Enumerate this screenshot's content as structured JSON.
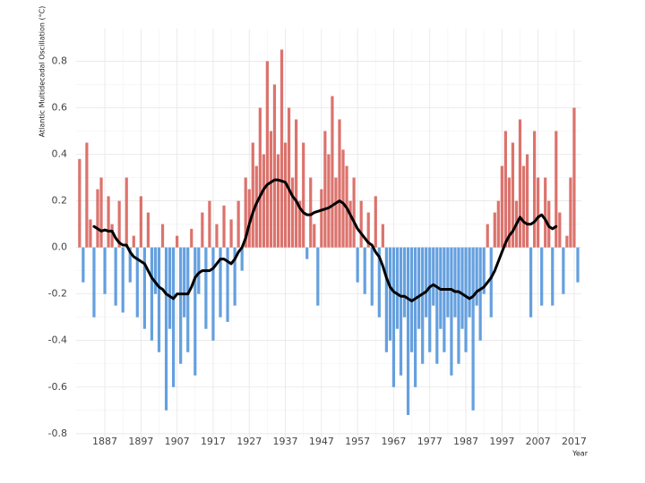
{
  "chart_data": {
    "type": "bar-line",
    "y_label": "Atlantic Multidecadal Oscillation (°C)",
    "x_label": "Year",
    "xlim": [
      1879,
      2019
    ],
    "ylim": [
      -0.82,
      0.94
    ],
    "xticks": [
      1887,
      1897,
      1907,
      1917,
      1927,
      1937,
      1947,
      1957,
      1967,
      1977,
      1987,
      1997,
      2007,
      2017
    ],
    "yticks": [
      0.8,
      0.6,
      0.4,
      0.2,
      {
        "value": 0,
        "label": "0.0"
      },
      -0.2,
      -0.4,
      -0.6,
      -0.8
    ],
    "grid": true,
    "positive_color": "#d65a54",
    "negative_color": "#4a8fd9",
    "x": [
      1880,
      1881,
      1882,
      1883,
      1884,
      1885,
      1886,
      1887,
      1888,
      1889,
      1890,
      1891,
      1892,
      1893,
      1894,
      1895,
      1896,
      1897,
      1898,
      1899,
      1900,
      1901,
      1902,
      1903,
      1904,
      1905,
      1906,
      1907,
      1908,
      1909,
      1910,
      1911,
      1912,
      1913,
      1914,
      1915,
      1916,
      1917,
      1918,
      1919,
      1920,
      1921,
      1922,
      1923,
      1924,
      1925,
      1926,
      1927,
      1928,
      1929,
      1930,
      1931,
      1932,
      1933,
      1934,
      1935,
      1936,
      1937,
      1938,
      1939,
      1940,
      1941,
      1942,
      1943,
      1944,
      1945,
      1946,
      1947,
      1948,
      1949,
      1950,
      1951,
      1952,
      1953,
      1954,
      1955,
      1956,
      1957,
      1958,
      1959,
      1960,
      1961,
      1962,
      1963,
      1964,
      1965,
      1966,
      1967,
      1968,
      1969,
      1970,
      1971,
      1972,
      1973,
      1974,
      1975,
      1976,
      1977,
      1978,
      1979,
      1980,
      1981,
      1982,
      1983,
      1984,
      1985,
      1986,
      1987,
      1988,
      1989,
      1990,
      1991,
      1992,
      1993,
      1994,
      1995,
      1996,
      1997,
      1998,
      1999,
      2000,
      2001,
      2002,
      2003,
      2004,
      2005,
      2006,
      2007,
      2008,
      2009,
      2010,
      2011,
      2012,
      2013,
      2014,
      2015,
      2016,
      2017,
      2018
    ],
    "values": [
      0.38,
      -0.15,
      0.45,
      0.12,
      -0.3,
      0.25,
      0.3,
      -0.2,
      0.22,
      0.1,
      -0.25,
      0.2,
      -0.28,
      0.3,
      -0.15,
      0.05,
      -0.3,
      0.22,
      -0.35,
      0.15,
      -0.4,
      -0.2,
      -0.45,
      0.1,
      -0.7,
      -0.35,
      -0.6,
      0.05,
      -0.5,
      -0.3,
      -0.45,
      0.08,
      -0.55,
      -0.2,
      0.15,
      -0.35,
      0.2,
      -0.4,
      0.1,
      -0.3,
      0.18,
      -0.32,
      0.12,
      -0.25,
      0.2,
      -0.1,
      0.3,
      0.25,
      0.45,
      0.35,
      0.6,
      0.4,
      0.8,
      0.5,
      0.7,
      0.4,
      0.85,
      0.45,
      0.6,
      0.3,
      0.55,
      0.2,
      0.45,
      -0.05,
      0.3,
      0.1,
      -0.25,
      0.25,
      0.5,
      0.4,
      0.65,
      0.3,
      0.55,
      0.42,
      0.35,
      0.2,
      0.3,
      -0.15,
      0.2,
      -0.2,
      0.15,
      -0.25,
      0.22,
      -0.3,
      0.1,
      -0.45,
      -0.4,
      -0.6,
      -0.35,
      -0.55,
      -0.3,
      -0.72,
      -0.45,
      -0.6,
      -0.35,
      -0.5,
      -0.3,
      -0.45,
      -0.25,
      -0.5,
      -0.35,
      -0.45,
      -0.3,
      -0.55,
      -0.3,
      -0.5,
      -0.35,
      -0.45,
      -0.3,
      -0.7,
      -0.25,
      -0.4,
      -0.2,
      0.1,
      -0.3,
      0.15,
      0.2,
      0.35,
      0.5,
      0.3,
      0.45,
      0.2,
      0.55,
      0.35,
      0.4,
      -0.3,
      0.5,
      0.3,
      -0.25,
      0.3,
      0.2,
      -0.25,
      0.5,
      0.15,
      -0.2,
      0.05,
      0.3,
      0.6,
      -0.15
    ],
    "smooth": {
      "color": "#000000",
      "x": [
        1884,
        1885,
        1886,
        1887,
        1888,
        1889,
        1890,
        1891,
        1892,
        1893,
        1894,
        1895,
        1896,
        1897,
        1898,
        1899,
        1900,
        1901,
        1902,
        1903,
        1904,
        1905,
        1906,
        1907,
        1908,
        1909,
        1910,
        1911,
        1912,
        1913,
        1914,
        1915,
        1916,
        1917,
        1918,
        1919,
        1920,
        1921,
        1922,
        1923,
        1924,
        1925,
        1926,
        1927,
        1928,
        1929,
        1930,
        1931,
        1932,
        1933,
        1934,
        1935,
        1936,
        1937,
        1938,
        1939,
        1940,
        1941,
        1942,
        1943,
        1944,
        1945,
        1946,
        1947,
        1948,
        1949,
        1950,
        1951,
        1952,
        1953,
        1954,
        1955,
        1956,
        1957,
        1958,
        1959,
        1960,
        1961,
        1962,
        1963,
        1964,
        1965,
        1966,
        1967,
        1968,
        1969,
        1970,
        1971,
        1972,
        1973,
        1974,
        1975,
        1976,
        1977,
        1978,
        1979,
        1980,
        1981,
        1982,
        1983,
        1984,
        1985,
        1986,
        1987,
        1988,
        1989,
        1990,
        1991,
        1992,
        1993,
        1994,
        1995,
        1996,
        1997,
        1998,
        1999,
        2000,
        2001,
        2002,
        2003,
        2004,
        2005,
        2006,
        2007,
        2008,
        2009,
        2010,
        2011,
        2012
      ],
      "values": [
        0.09,
        0.08,
        0.07,
        0.075,
        0.07,
        0.07,
        0.04,
        0.02,
        0.01,
        0.01,
        -0.02,
        -0.04,
        -0.05,
        -0.06,
        -0.07,
        -0.1,
        -0.13,
        -0.15,
        -0.17,
        -0.18,
        -0.2,
        -0.21,
        -0.22,
        -0.2,
        -0.2,
        -0.2,
        -0.2,
        -0.17,
        -0.13,
        -0.11,
        -0.1,
        -0.1,
        -0.1,
        -0.09,
        -0.07,
        -0.05,
        -0.05,
        -0.06,
        -0.07,
        -0.05,
        -0.02,
        0.0,
        0.04,
        0.1,
        0.15,
        0.19,
        0.22,
        0.25,
        0.27,
        0.28,
        0.29,
        0.29,
        0.285,
        0.28,
        0.25,
        0.22,
        0.2,
        0.17,
        0.15,
        0.14,
        0.14,
        0.15,
        0.155,
        0.16,
        0.165,
        0.17,
        0.18,
        0.19,
        0.2,
        0.19,
        0.17,
        0.14,
        0.11,
        0.08,
        0.06,
        0.04,
        0.02,
        0.01,
        -0.02,
        -0.04,
        -0.08,
        -0.13,
        -0.17,
        -0.19,
        -0.2,
        -0.21,
        -0.21,
        -0.22,
        -0.23,
        -0.22,
        -0.21,
        -0.2,
        -0.19,
        -0.17,
        -0.16,
        -0.17,
        -0.18,
        -0.18,
        -0.18,
        -0.18,
        -0.19,
        -0.19,
        -0.2,
        -0.21,
        -0.22,
        -0.21,
        -0.19,
        -0.18,
        -0.17,
        -0.15,
        -0.13,
        -0.1,
        -0.06,
        -0.02,
        0.02,
        0.05,
        0.07,
        0.1,
        0.13,
        0.11,
        0.1,
        0.1,
        0.11,
        0.13,
        0.14,
        0.12,
        0.09,
        0.08,
        0.09
      ]
    }
  }
}
